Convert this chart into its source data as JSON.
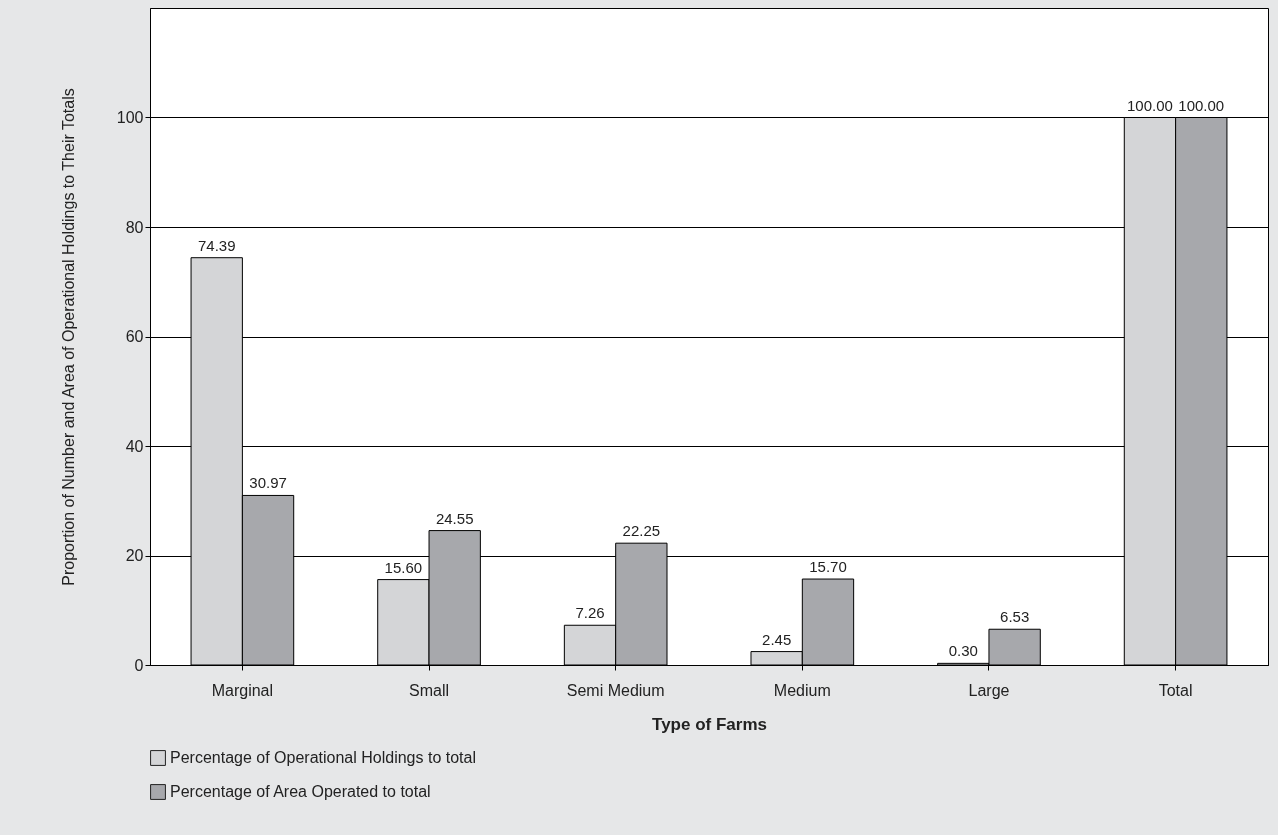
{
  "chart_data": {
    "type": "bar",
    "xlabel": "Type of Farms",
    "ylabel": "Proportion of Number and Area of Operational Holdings to Their Totals",
    "categories": [
      "Marginal",
      "Small",
      "Semi Medium",
      "Medium",
      "Large",
      "Total"
    ],
    "series": [
      {
        "name": "Percentage of Operational Holdings to total",
        "color": "#d4d5d7",
        "values": [
          74.39,
          15.6,
          7.26,
          2.45,
          0.3,
          100
        ],
        "value_labels": [
          "74.39",
          "15.60",
          "7.26",
          "2.45",
          "0.30",
          "100.00"
        ]
      },
      {
        "name": "Percentage of Area Operated to total",
        "color": "#a7a8ac",
        "values": [
          30.97,
          24.55,
          22.25,
          15.7,
          6.53,
          100
        ],
        "value_labels": [
          "30.97",
          "24.55",
          "22.25",
          "15.70",
          "6.53",
          "100.00"
        ]
      }
    ],
    "ylim": [
      0,
      120
    ],
    "yticks": [
      0,
      20,
      40,
      60,
      80,
      100
    ],
    "grid": "y",
    "legend": "bottom"
  }
}
